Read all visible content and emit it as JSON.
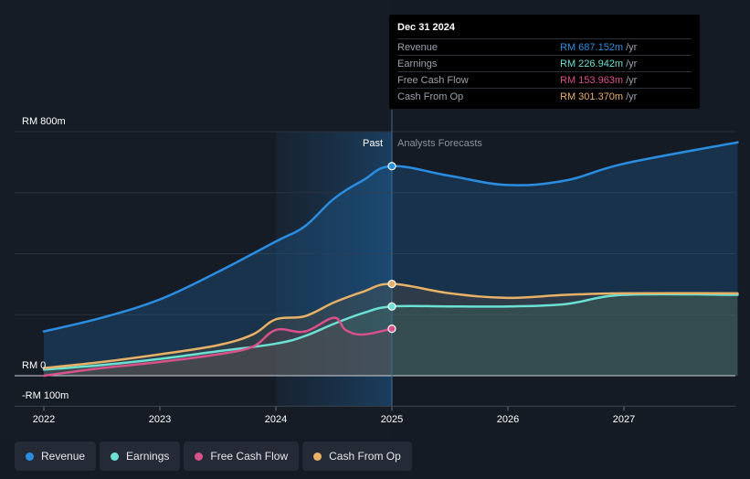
{
  "tooltip": {
    "date": "Dec 31 2024",
    "rows": [
      {
        "name": "Revenue",
        "value": "RM 687.152m",
        "unit": "/yr",
        "color": "#2b8de0"
      },
      {
        "name": "Earnings",
        "value": "RM 226.942m",
        "unit": "/yr",
        "color": "#6ce0d3"
      },
      {
        "name": "Free Cash Flow",
        "value": "RM 153.963m",
        "unit": "/yr",
        "color": "#d8518a"
      },
      {
        "name": "Cash From Op",
        "value": "RM 301.370m",
        "unit": "/yr",
        "color": "#e7b168"
      }
    ]
  },
  "legend": [
    {
      "label": "Revenue",
      "color": "#2b8de0"
    },
    {
      "label": "Earnings",
      "color": "#6ce0d3"
    },
    {
      "label": "Free Cash Flow",
      "color": "#d8518a"
    },
    {
      "label": "Cash From Op",
      "color": "#e7b168"
    }
  ],
  "chart_data": {
    "type": "line",
    "y_top_label": "RM 800m",
    "y_zero_label": "RM 0",
    "y_bottom_label": "-RM 100m",
    "ylim": [
      -100,
      800
    ],
    "xlim": [
      2021.9,
      2027.98
    ],
    "divider_x": 2025.0,
    "past_label": "Past",
    "forecast_label": "Analysts Forecasts",
    "x_ticks": [
      {
        "value": 2022,
        "label": "2022"
      },
      {
        "value": 2023,
        "label": "2023"
      },
      {
        "value": 2024,
        "label": "2024"
      },
      {
        "value": 2025,
        "label": "2025"
      },
      {
        "value": 2026,
        "label": "2026"
      },
      {
        "value": 2027,
        "label": "2027"
      }
    ],
    "series": [
      {
        "name": "Revenue",
        "color": "#2b8de0",
        "points": [
          [
            2022.0,
            145
          ],
          [
            2022.5,
            190
          ],
          [
            2023.0,
            250
          ],
          [
            2023.5,
            340
          ],
          [
            2024.0,
            440
          ],
          [
            2024.25,
            490
          ],
          [
            2024.5,
            580
          ],
          [
            2024.75,
            640
          ],
          [
            2025.0,
            687
          ],
          [
            2025.5,
            655
          ],
          [
            2026.0,
            625
          ],
          [
            2026.5,
            640
          ],
          [
            2027.0,
            695
          ],
          [
            2027.98,
            765
          ]
        ]
      },
      {
        "name": "Earnings",
        "color": "#6ce0d3",
        "points": [
          [
            2022.0,
            20
          ],
          [
            2022.5,
            35
          ],
          [
            2023.0,
            55
          ],
          [
            2023.5,
            80
          ],
          [
            2024.0,
            105
          ],
          [
            2024.25,
            130
          ],
          [
            2024.5,
            170
          ],
          [
            2024.75,
            205
          ],
          [
            2025.0,
            227
          ],
          [
            2025.5,
            227
          ],
          [
            2026.0,
            227
          ],
          [
            2026.5,
            235
          ],
          [
            2027.0,
            265
          ],
          [
            2027.98,
            265
          ]
        ]
      },
      {
        "name": "Free Cash Flow",
        "color": "#d8518a",
        "points": [
          [
            2022.0,
            0
          ],
          [
            2022.5,
            25
          ],
          [
            2023.0,
            45
          ],
          [
            2023.5,
            70
          ],
          [
            2023.8,
            95
          ],
          [
            2024.0,
            150
          ],
          [
            2024.25,
            145
          ],
          [
            2024.5,
            190
          ],
          [
            2024.6,
            150
          ],
          [
            2024.75,
            135
          ],
          [
            2025.0,
            154
          ]
        ]
      },
      {
        "name": "Cash From Op",
        "color": "#e7b168",
        "points": [
          [
            2022.0,
            25
          ],
          [
            2022.5,
            45
          ],
          [
            2023.0,
            70
          ],
          [
            2023.5,
            100
          ],
          [
            2023.8,
            135
          ],
          [
            2024.0,
            185
          ],
          [
            2024.25,
            195
          ],
          [
            2024.5,
            240
          ],
          [
            2024.75,
            275
          ],
          [
            2025.0,
            301
          ],
          [
            2025.5,
            270
          ],
          [
            2026.0,
            255
          ],
          [
            2026.5,
            265
          ],
          [
            2027.0,
            270
          ],
          [
            2027.98,
            270
          ]
        ]
      }
    ]
  }
}
